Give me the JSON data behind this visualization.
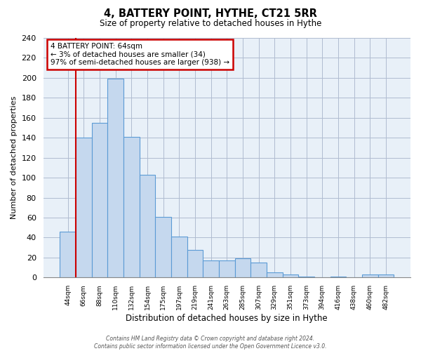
{
  "title": "4, BATTERY POINT, HYTHE, CT21 5RR",
  "subtitle": "Size of property relative to detached houses in Hythe",
  "xlabel": "Distribution of detached houses by size in Hythe",
  "ylabel": "Number of detached properties",
  "bar_labels": [
    "44sqm",
    "66sqm",
    "88sqm",
    "110sqm",
    "132sqm",
    "154sqm",
    "175sqm",
    "197sqm",
    "219sqm",
    "241sqm",
    "263sqm",
    "285sqm",
    "307sqm",
    "329sqm",
    "351sqm",
    "373sqm",
    "394sqm",
    "416sqm",
    "438sqm",
    "460sqm",
    "482sqm"
  ],
  "bar_heights": [
    46,
    140,
    155,
    199,
    141,
    103,
    61,
    41,
    28,
    17,
    17,
    19,
    15,
    5,
    3,
    1,
    0,
    1,
    0,
    3,
    3
  ],
  "bar_color": "#c5d8ee",
  "bar_edge_color": "#5b9bd5",
  "plot_bg_color": "#e8f0f8",
  "highlight_color": "#cc0000",
  "annotation_title": "4 BATTERY POINT: 64sqm",
  "annotation_line1": "← 3% of detached houses are smaller (34)",
  "annotation_line2": "97% of semi-detached houses are larger (938) →",
  "annotation_box_color": "#ffffff",
  "annotation_box_edge": "#cc0000",
  "ylim": [
    0,
    240
  ],
  "yticks": [
    0,
    20,
    40,
    60,
    80,
    100,
    120,
    140,
    160,
    180,
    200,
    220,
    240
  ],
  "grid_color": "#b0bcd0",
  "background_color": "#ffffff",
  "footer_line1": "Contains HM Land Registry data © Crown copyright and database right 2024.",
  "footer_line2": "Contains public sector information licensed under the Open Government Licence v3.0."
}
